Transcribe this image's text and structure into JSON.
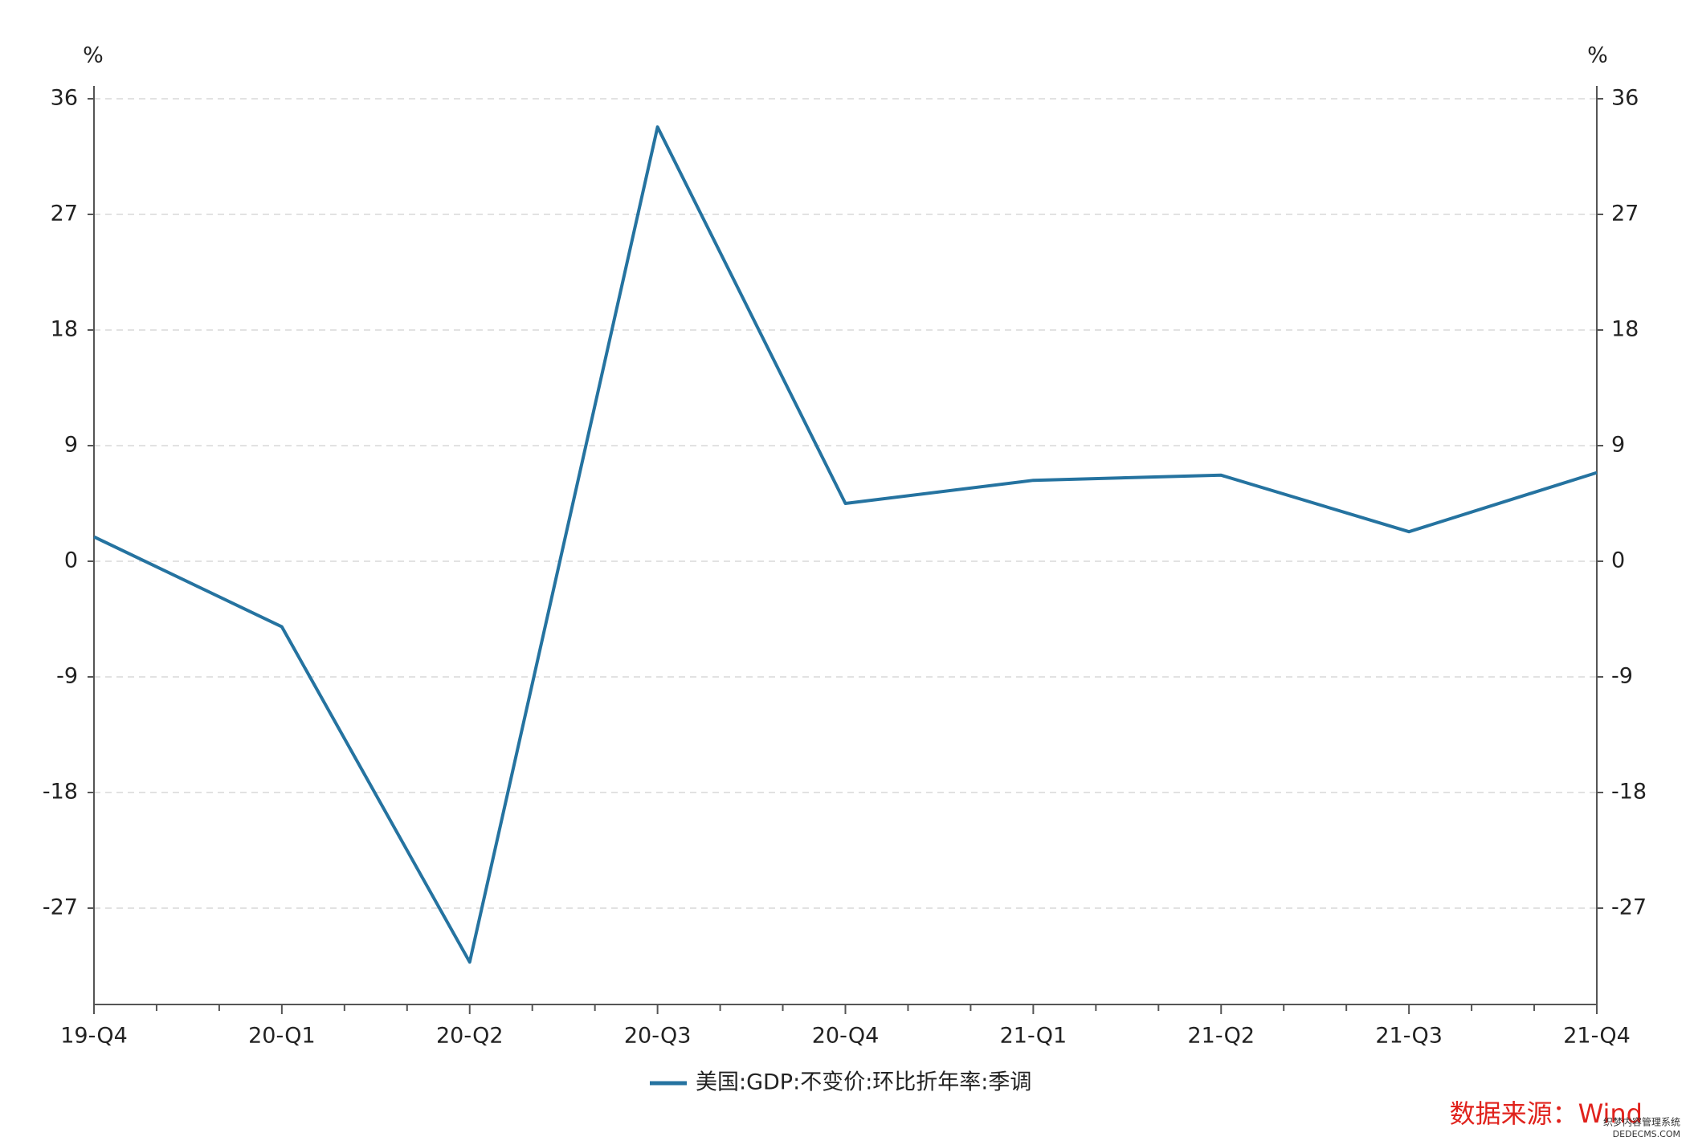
{
  "chart_data": {
    "type": "line",
    "y_unit": "%",
    "y2_unit": "%",
    "categories": [
      "19-Q4",
      "20-Q1",
      "20-Q2",
      "20-Q3",
      "20-Q4",
      "21-Q1",
      "21-Q2",
      "21-Q3",
      "21-Q4"
    ],
    "series": [
      {
        "name": "美国:GDP:不变价:环比折年率:季调",
        "color": "#2573a0",
        "values": [
          1.9,
          -5.1,
          -31.2,
          33.8,
          4.5,
          6.3,
          6.7,
          2.3,
          6.9
        ]
      }
    ],
    "ylim": [
      -34.5,
      37
    ],
    "yticks": [
      -27,
      -18,
      -9,
      0,
      9,
      18,
      27,
      36
    ],
    "y2lim": [
      -34.5,
      37
    ],
    "y2ticks": [
      -27,
      -18,
      -9,
      0,
      9,
      18,
      27,
      36
    ],
    "grid": true,
    "legend": "bottom",
    "source": "数据来源：Wind",
    "source_color": "#e0221c",
    "watermark": "织梦内容管理系统",
    "watermark_url": "DEDECMS.COM"
  }
}
